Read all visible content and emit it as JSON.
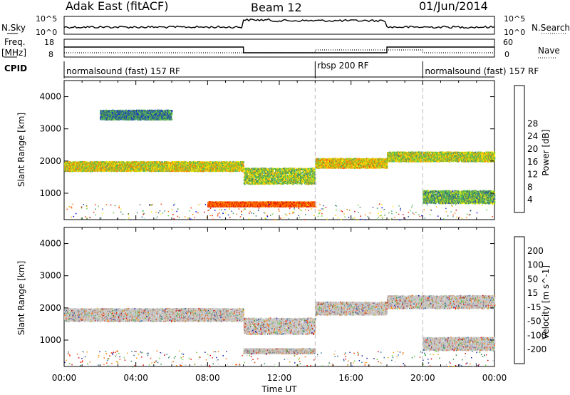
{
  "header": {
    "station": "Adak East (fitACF)",
    "beam": "Beam 12",
    "date": "01/Jun/2014"
  },
  "top_panels": {
    "nsky_label": "N.Sky",
    "nsky_ticks": [
      "10^5",
      "10^0"
    ],
    "nsearch_label": "N.Search",
    "nsearch_ticks": [
      "10^5",
      "10^0"
    ],
    "freq_label": "Freq.",
    "freq_unit": "[MHz]",
    "freq_ticks": [
      "18",
      "8"
    ],
    "nave_label": "Nave",
    "nave_ticks": [
      "60",
      "0"
    ],
    "cpid_label": "CPID",
    "cpid_segments": [
      {
        "label": "normalsound (fast) 157 RF",
        "start_hour": 0,
        "end_hour": 14
      },
      {
        "label": "rbsp 200 RF",
        "start_hour": 14,
        "end_hour": 20
      },
      {
        "label": "normalsound (fast) 157 RF",
        "start_hour": 20,
        "end_hour": 24
      }
    ]
  },
  "chart_data": [
    {
      "type": "heatmap",
      "panel": "power",
      "ylabel": "Slant Range [km]",
      "xlabel": "Time UT",
      "x_ticks": [
        "00:00",
        "04:00",
        "08:00",
        "12:00",
        "16:00",
        "20:00",
        "00:00"
      ],
      "xlim": [
        0,
        24
      ],
      "ylim": [
        180,
        4500
      ],
      "y_ticks": [
        "1000",
        "2000",
        "3000",
        "4000"
      ],
      "colorbar": {
        "label": "Power [dB]",
        "ticks": [
          "4",
          "8",
          "12",
          "16",
          "20",
          "24",
          "28"
        ],
        "colors": [
          "#0000ff",
          "#2b4ea8",
          "#3f7f5f",
          "#4cae6c",
          "#66cc33",
          "#ffee00",
          "#ffb300",
          "#ff7700",
          "#ff3300",
          "#dd0000"
        ]
      },
      "bands": [
        {
          "t0": 0.0,
          "t1": 10.0,
          "r0": 1700,
          "r1": 2000,
          "level": 0.55
        },
        {
          "t0": 10.0,
          "t1": 14.0,
          "r0": 1300,
          "r1": 1800,
          "level": 0.45
        },
        {
          "t0": 14.0,
          "t1": 18.0,
          "r0": 1800,
          "r1": 2100,
          "level": 0.6
        },
        {
          "t0": 18.0,
          "t1": 24.0,
          "r0": 2000,
          "r1": 2300,
          "level": 0.5
        },
        {
          "t0": 8.0,
          "t1": 14.0,
          "r0": 600,
          "r1": 750,
          "level": 0.85
        },
        {
          "t0": 20.0,
          "t1": 24.0,
          "r0": 700,
          "r1": 1100,
          "level": 0.35
        },
        {
          "t0": 2.0,
          "t1": 6.0,
          "r0": 3300,
          "r1": 3600,
          "level": 0.25
        }
      ]
    },
    {
      "type": "heatmap",
      "panel": "velocity",
      "ylabel": "Slant Range [km]",
      "xlabel": "Time UT",
      "x_ticks": [
        "00:00",
        "04:00",
        "08:00",
        "12:00",
        "16:00",
        "20:00",
        "00:00"
      ],
      "xlim": [
        0,
        24
      ],
      "ylim": [
        180,
        4500
      ],
      "y_ticks": [
        "1000",
        "2000",
        "3000",
        "4000"
      ],
      "colorbar": {
        "label": "Velocity [m s^-1]",
        "ticks": [
          "200",
          "100",
          "50",
          "15",
          "-15",
          "-50",
          "-100",
          "-200"
        ],
        "colors": [
          "#1a1aa8",
          "#2c6f96",
          "#2e8a3d",
          "#66cc33",
          "#c8c8c8",
          "#ff9900",
          "#ff6600",
          "#ee3300",
          "#dd0000"
        ]
      },
      "bands": [
        {
          "t0": 0.0,
          "t1": 10.0,
          "r0": 1600,
          "r1": 2000
        },
        {
          "t0": 10.0,
          "t1": 14.0,
          "r0": 1200,
          "r1": 1700
        },
        {
          "t0": 14.0,
          "t1": 18.0,
          "r0": 1800,
          "r1": 2200
        },
        {
          "t0": 18.0,
          "t1": 24.0,
          "r0": 2000,
          "r1": 2400
        },
        {
          "t0": 10.0,
          "t1": 14.0,
          "r0": 600,
          "r1": 750
        },
        {
          "t0": 20.0,
          "t1": 24.0,
          "r0": 700,
          "r1": 1100
        }
      ]
    }
  ]
}
